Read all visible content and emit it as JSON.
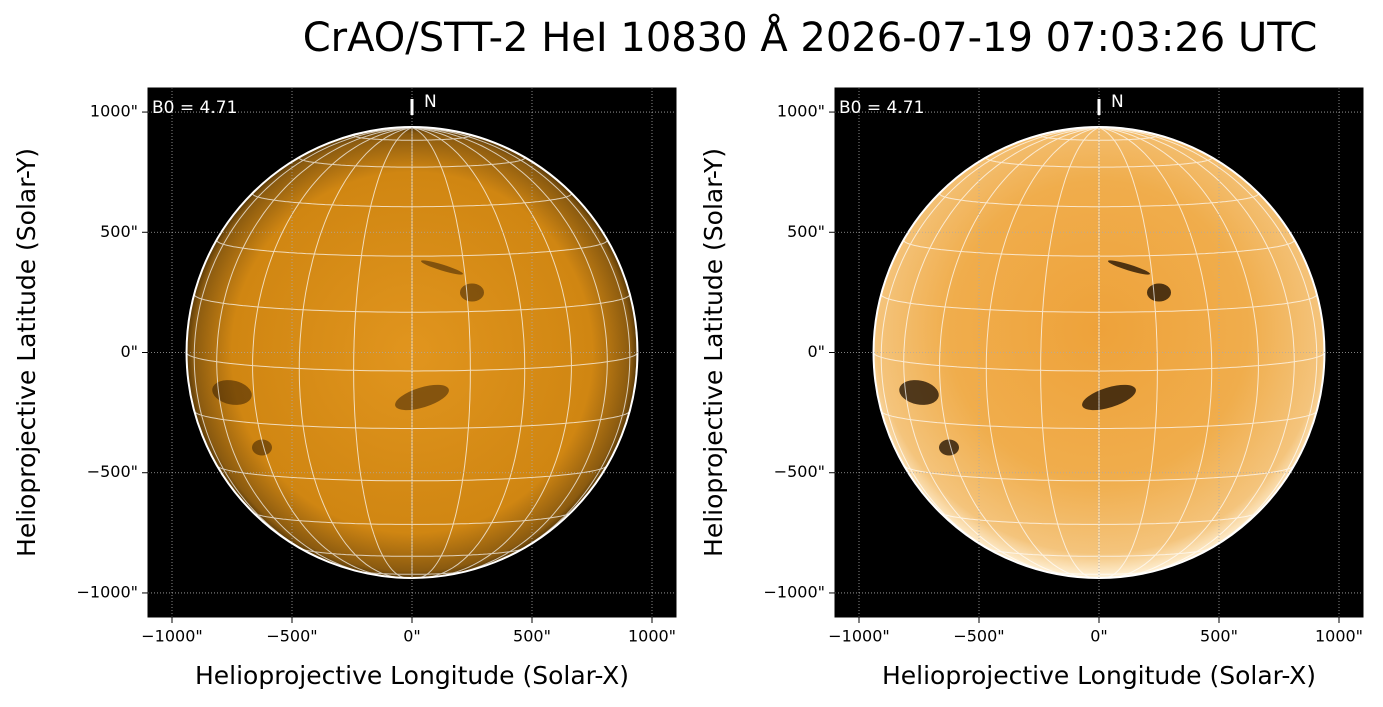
{
  "title": "CrAO/STT-2 HeI 10830 Å 2026-07-19 07:03:26 UTC",
  "chart_data": [
    {
      "type": "image",
      "xlabel": "Helioprojective Longitude (Solar-X)",
      "ylabel": "Helioprojective Latitude (Solar-Y)",
      "annotation": "B0 = 4.71",
      "north_label": "N",
      "xlim": [
        -1100,
        1100
      ],
      "ylim": [
        -1100,
        1100
      ],
      "xticks": [
        {
          "value": -1000,
          "label": "−1000\""
        },
        {
          "value": -500,
          "label": "−500\""
        },
        {
          "value": 0,
          "label": "0\""
        },
        {
          "value": 500,
          "label": "500\""
        },
        {
          "value": 1000,
          "label": "1000\""
        }
      ],
      "yticks": [
        {
          "value": -1000,
          "label": "−1000\""
        },
        {
          "value": -500,
          "label": "−500\""
        },
        {
          "value": 0,
          "label": "0\""
        },
        {
          "value": 500,
          "label": "500\""
        },
        {
          "value": 1000,
          "label": "1000\""
        }
      ],
      "grid": true
    },
    {
      "type": "image",
      "xlabel": "Helioprojective Longitude (Solar-X)",
      "ylabel": "Helioprojective Latitude (Solar-Y)",
      "annotation": "B0 = 4.71",
      "north_label": "N",
      "xlim": [
        -1100,
        1100
      ],
      "ylim": [
        -1100,
        1100
      ],
      "xticks": [
        {
          "value": -1000,
          "label": "−1000\""
        },
        {
          "value": -500,
          "label": "−500\""
        },
        {
          "value": 0,
          "label": "0\""
        },
        {
          "value": 500,
          "label": "500\""
        },
        {
          "value": 1000,
          "label": "1000\""
        }
      ],
      "yticks": [
        {
          "value": -1000,
          "label": "−1000\""
        },
        {
          "value": -500,
          "label": "−500\""
        },
        {
          "value": 0,
          "label": "0\""
        },
        {
          "value": 500,
          "label": "500\""
        },
        {
          "value": 1000,
          "label": "1000\""
        }
      ],
      "grid": true
    }
  ]
}
